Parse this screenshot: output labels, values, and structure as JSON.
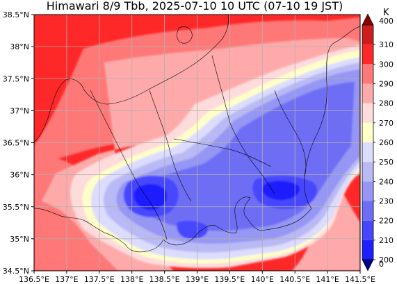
{
  "title": "Himawari 8/9 Tbb, 2025-07-10 10 UTC (07-10 19 JST)",
  "colorbar": {
    "unit": "K",
    "levels": [
      0,
      200,
      210,
      220,
      230,
      240,
      250,
      260,
      270,
      280,
      290,
      300,
      310,
      400
    ],
    "colors": [
      "#00008b",
      "#1e1eff",
      "#4646ff",
      "#6e6ef5",
      "#9696f5",
      "#b9b9f5",
      "#dcdcff",
      "#ffffc8",
      "#ffdcdc",
      "#ffaaaa",
      "#ff7878",
      "#ff2828",
      "#cd1e1e",
      "#8b0000"
    ],
    "level_labels": [
      "0",
      "200",
      "210",
      "220",
      "230",
      "240",
      "250",
      "260",
      "270",
      "280",
      "290",
      "300",
      "310",
      "400"
    ],
    "extend": "both"
  },
  "axes": {
    "xlim": [
      136.5,
      141.5
    ],
    "ylim": [
      34.5,
      38.5
    ],
    "xticks": [
      136.5,
      137,
      137.5,
      138,
      138.5,
      139,
      139.5,
      140,
      140.5,
      141,
      141.5
    ],
    "xtick_labels": [
      "136.5°E",
      "137°E",
      "137.5°E",
      "138°E",
      "138.5°E",
      "139°E",
      "139.5°E",
      "140°E",
      "140.5°E",
      "141°E",
      "141.5°E"
    ],
    "yticks": [
      34.5,
      35,
      35.5,
      36,
      36.5,
      37,
      37.5,
      38,
      38.5
    ],
    "ytick_labels": [
      "34.5°N",
      "35°N",
      "35.5°N",
      "36°N",
      "36.5°N",
      "37°N",
      "37.5°N",
      "38°N",
      "38.5°N"
    ],
    "grid": true
  },
  "cloud_field": {
    "description_levels": [
      {
        "tbb_k": 295,
        "region": "outer"
      },
      {
        "tbb_k": 285
      },
      {
        "tbb_k": 275
      },
      {
        "tbb_k": 265
      },
      {
        "tbb_k": 255
      },
      {
        "tbb_k": 245
      },
      {
        "tbb_k": 235
      },
      {
        "tbb_k": 225
      },
      {
        "tbb_k": 215
      }
    ]
  }
}
